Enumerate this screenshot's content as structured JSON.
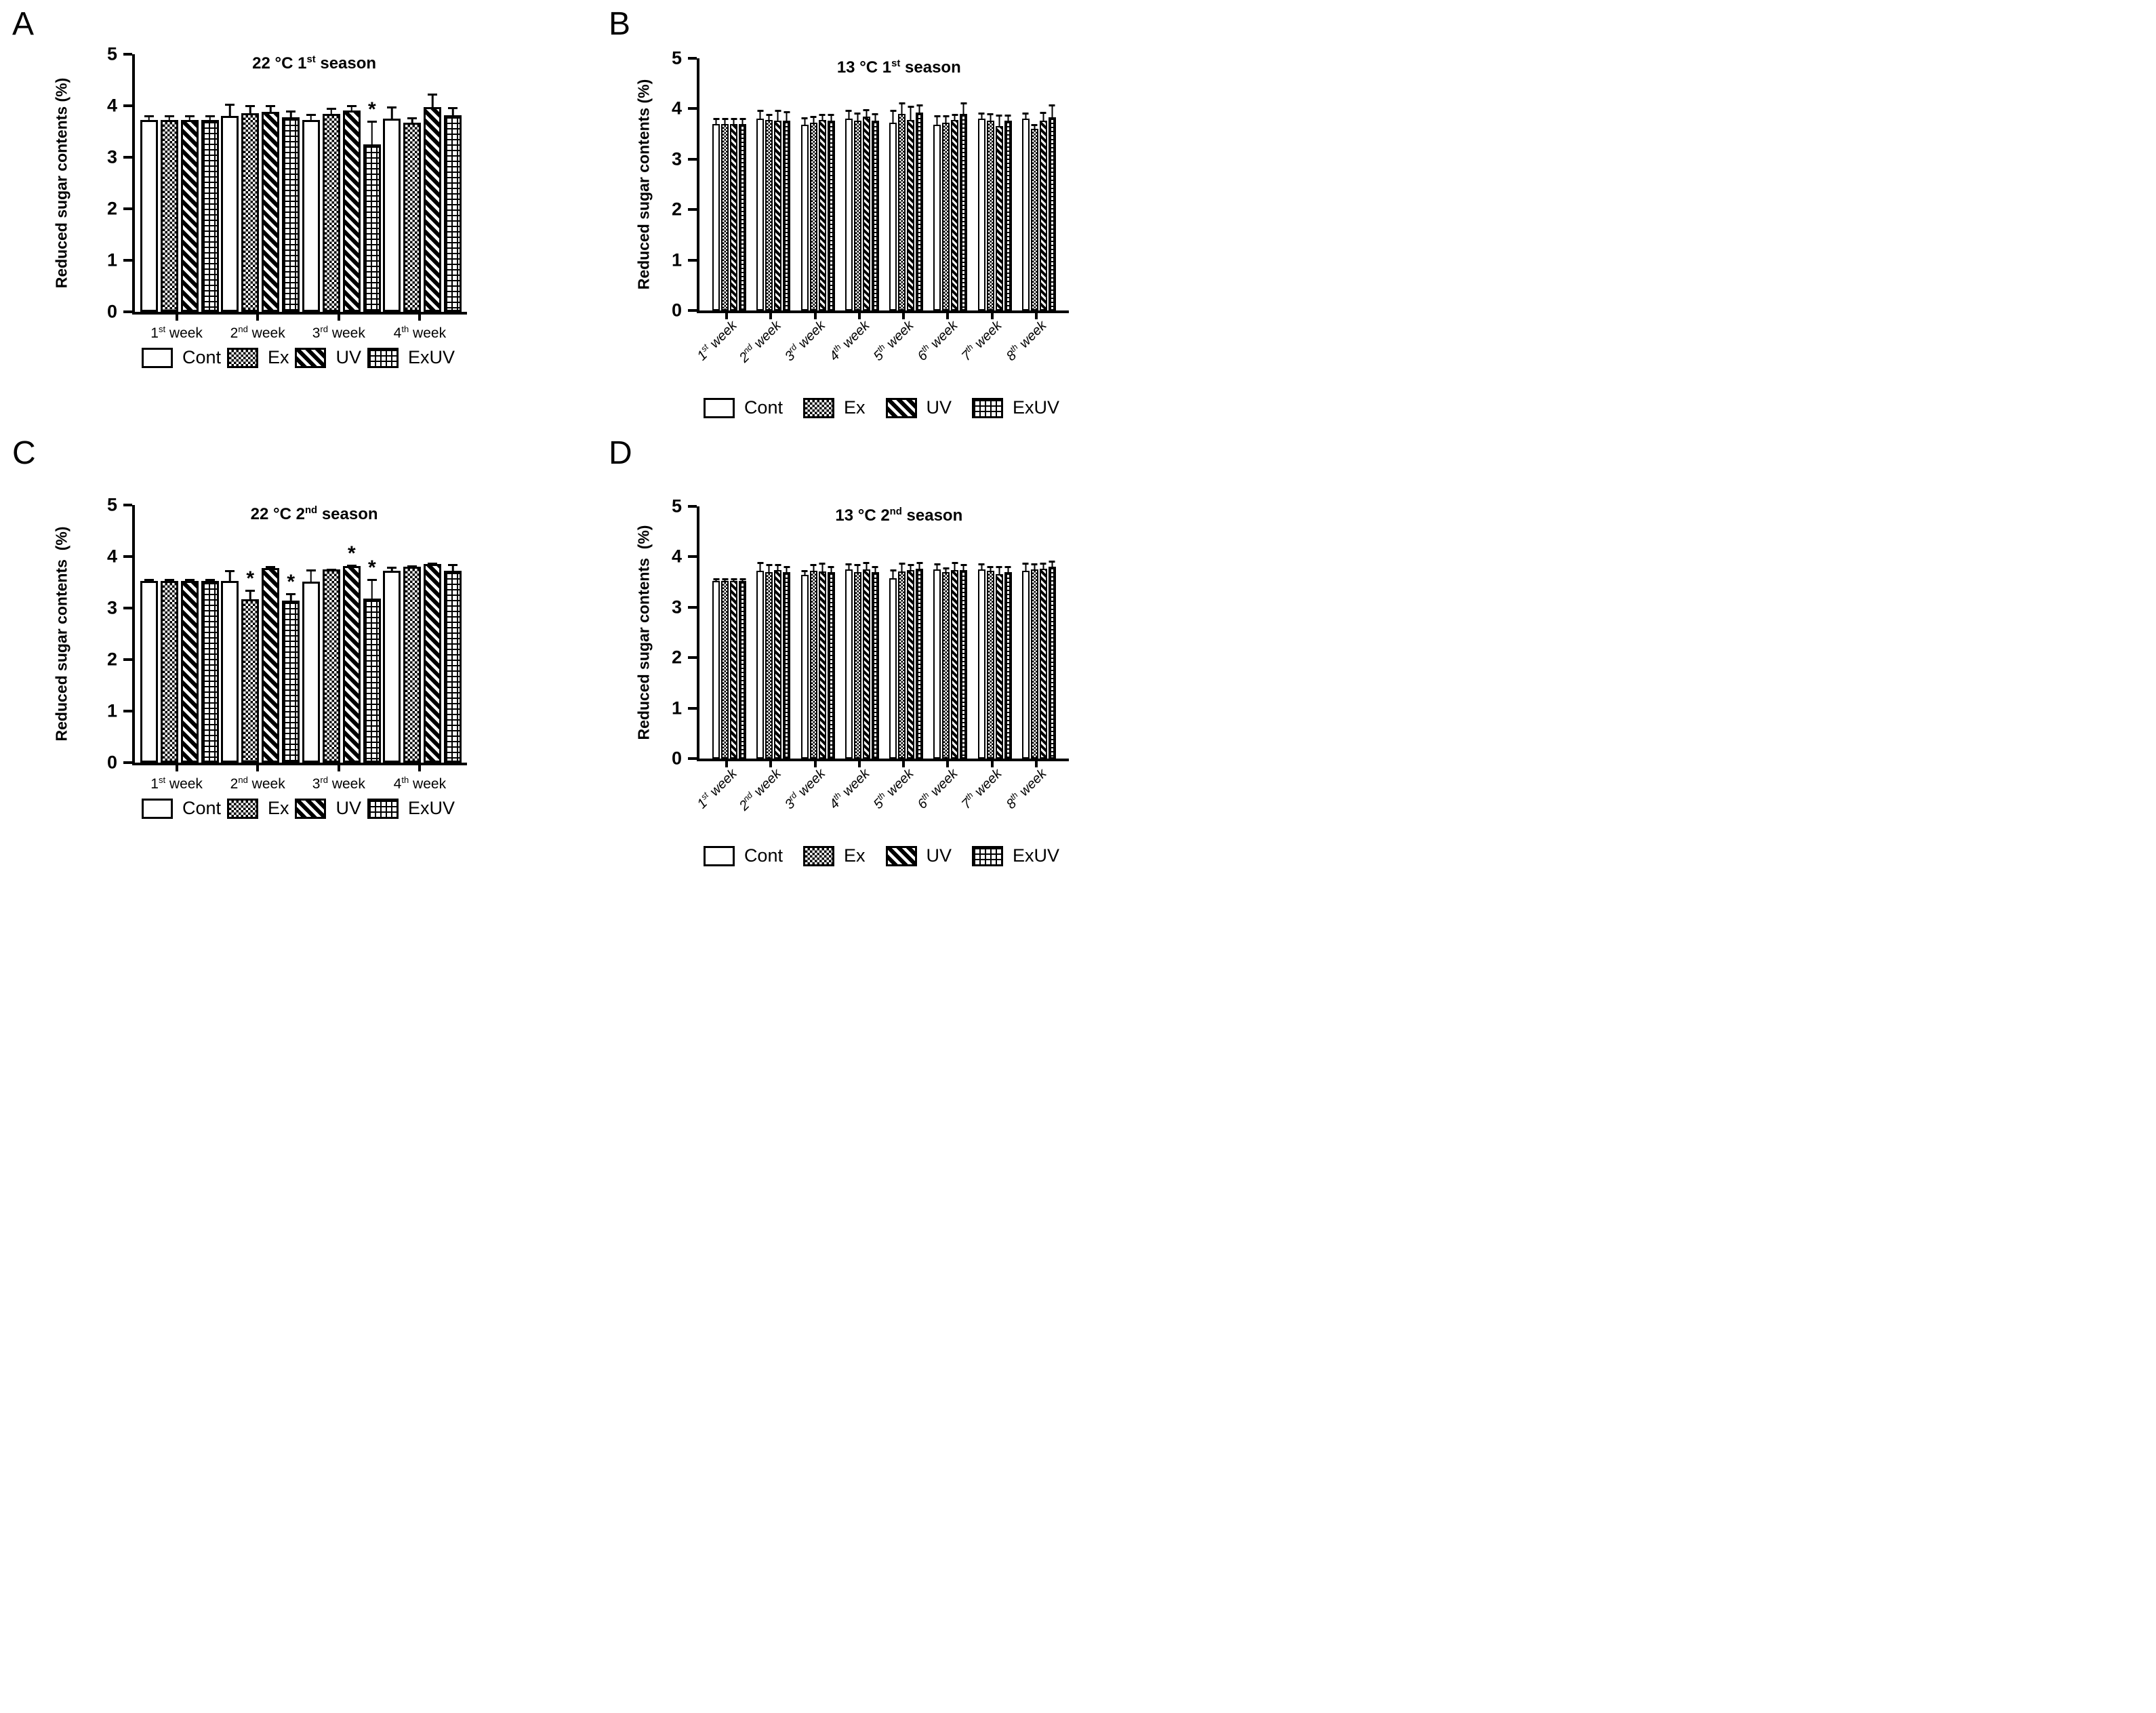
{
  "ui": {
    "sig_symbol": "*",
    "colors": {
      "foreground": "#000000",
      "background": "#ffffff"
    },
    "legend": [
      {
        "name": "Cont",
        "pattern": "cont",
        "swatch": "empty-white"
      },
      {
        "name": "Ex",
        "pattern": "ex",
        "swatch": "checkerboard"
      },
      {
        "name": "UV",
        "pattern": "uv",
        "swatch": "diagonal-stripes"
      },
      {
        "name": "ExUV",
        "pattern": "exuv",
        "swatch": "brick"
      }
    ]
  },
  "chart_data": [
    {
      "id": "A",
      "panel_letter": "A",
      "type": "bar",
      "title": "22 °C 1st season",
      "title_parts": {
        "prefix": "22 °C 1",
        "sup": "st",
        "suffix": " season"
      },
      "ylabel": "Reduced sugar contents (%)",
      "ylim": [
        0,
        5
      ],
      "yticks": [
        0,
        1,
        2,
        3,
        4,
        5
      ],
      "grid": false,
      "legend_position": "bottom",
      "categories": [
        "1st week",
        "2nd week",
        "3rd week",
        "4th week"
      ],
      "category_parts": [
        {
          "n": "1",
          "sup": "st",
          "rest": " week"
        },
        {
          "n": "2",
          "sup": "nd",
          "rest": " week"
        },
        {
          "n": "3",
          "sup": "rd",
          "rest": " week"
        },
        {
          "n": "4",
          "sup": "th",
          "rest": " week"
        }
      ],
      "rotated_xlabels": false,
      "series": [
        {
          "name": "Cont",
          "pattern": "cont",
          "values": [
            3.72,
            3.8,
            3.73,
            3.75
          ],
          "errors": [
            0.14,
            0.28,
            0.15,
            0.27
          ],
          "sig": [
            false,
            false,
            false,
            false
          ]
        },
        {
          "name": "Ex",
          "pattern": "ex",
          "values": [
            3.72,
            3.85,
            3.84,
            3.67
          ],
          "errors": [
            0.14,
            0.2,
            0.16,
            0.14
          ],
          "sig": [
            false,
            false,
            false,
            false
          ]
        },
        {
          "name": "UV",
          "pattern": "uv",
          "values": [
            3.72,
            3.88,
            3.91,
            3.97
          ],
          "errors": [
            0.14,
            0.17,
            0.14,
            0.3
          ],
          "sig": [
            false,
            false,
            false,
            false
          ]
        },
        {
          "name": "ExUV",
          "pattern": "exuv",
          "values": [
            3.72,
            3.78,
            3.25,
            3.81
          ],
          "errors": [
            0.14,
            0.17,
            0.5,
            0.2
          ],
          "sig": [
            false,
            false,
            true,
            false
          ]
        }
      ]
    },
    {
      "id": "B",
      "panel_letter": "B",
      "type": "bar",
      "title": "13 °C 1st season",
      "title_parts": {
        "prefix": "13 °C 1",
        "sup": "st",
        "suffix": " season"
      },
      "ylabel": "Reduced sugar contents (%)",
      "ylim": [
        0,
        5
      ],
      "yticks": [
        0,
        1,
        2,
        3,
        4,
        5
      ],
      "grid": false,
      "legend_position": "bottom",
      "categories": [
        "1st week",
        "2nd week",
        "3rd week",
        "4th week",
        "5th week",
        "6th week",
        "7th week",
        "8th week"
      ],
      "category_parts": [
        {
          "n": "1",
          "sup": "st",
          "rest": " week"
        },
        {
          "n": "2",
          "sup": "nd",
          "rest": " week"
        },
        {
          "n": "3",
          "sup": "rd",
          "rest": " week"
        },
        {
          "n": "4",
          "sup": "th",
          "rest": " week"
        },
        {
          "n": "5",
          "sup": "th",
          "rest": " week"
        },
        {
          "n": "6",
          "sup": "th",
          "rest": " week"
        },
        {
          "n": "7",
          "sup": "th",
          "rest": " week"
        },
        {
          "n": "8",
          "sup": "th",
          "rest": " week"
        }
      ],
      "rotated_xlabels": true,
      "series": [
        {
          "name": "Cont",
          "pattern": "cont",
          "values": [
            3.7,
            3.8,
            3.68,
            3.8,
            3.72,
            3.68,
            3.8,
            3.8
          ],
          "errors": [
            0.15,
            0.2,
            0.18,
            0.2,
            0.28,
            0.22,
            0.15,
            0.15
          ],
          "sig": [
            false,
            false,
            false,
            false,
            false,
            false,
            false,
            false
          ]
        },
        {
          "name": "Ex",
          "pattern": "ex",
          "values": [
            3.7,
            3.78,
            3.73,
            3.77,
            3.9,
            3.72,
            3.76,
            3.6
          ],
          "errors": [
            0.15,
            0.15,
            0.15,
            0.18,
            0.25,
            0.18,
            0.18,
            0.12
          ],
          "sig": [
            false,
            false,
            false,
            false,
            false,
            false,
            false,
            false
          ]
        },
        {
          "name": "UV",
          "pattern": "uv",
          "values": [
            3.7,
            3.76,
            3.78,
            3.84,
            3.78,
            3.78,
            3.66,
            3.77
          ],
          "errors": [
            0.15,
            0.25,
            0.15,
            0.18,
            0.3,
            0.15,
            0.25,
            0.2
          ],
          "sig": [
            false,
            false,
            false,
            false,
            false,
            false,
            false,
            false
          ]
        },
        {
          "name": "ExUV",
          "pattern": "exuv",
          "values": [
            3.7,
            3.76,
            3.76,
            3.76,
            3.93,
            3.9,
            3.76,
            3.83
          ],
          "errors": [
            0.15,
            0.22,
            0.17,
            0.18,
            0.18,
            0.25,
            0.15,
            0.28
          ],
          "sig": [
            false,
            false,
            false,
            false,
            false,
            false,
            false,
            false
          ]
        }
      ]
    },
    {
      "id": "C",
      "panel_letter": "C",
      "type": "bar",
      "title": "22 °C 2nd season",
      "title_parts": {
        "prefix": "22 °C 2",
        "sup": "nd",
        "suffix": " season"
      },
      "ylabel": "Reduced sugar contents  (%)",
      "ylim": [
        0,
        5
      ],
      "yticks": [
        0,
        1,
        2,
        3,
        4,
        5
      ],
      "grid": false,
      "legend_position": "bottom",
      "categories": [
        "1st week",
        "2nd week",
        "3rd week",
        "4th week"
      ],
      "category_parts": [
        {
          "n": "1",
          "sup": "st",
          "rest": " week"
        },
        {
          "n": "2",
          "sup": "nd",
          "rest": " week"
        },
        {
          "n": "3",
          "sup": "rd",
          "rest": " week"
        },
        {
          "n": "4",
          "sup": "th",
          "rest": " week"
        }
      ],
      "rotated_xlabels": false,
      "series": [
        {
          "name": "Cont",
          "pattern": "cont",
          "values": [
            3.53,
            3.53,
            3.51,
            3.72
          ],
          "errors": [
            0.08,
            0.25,
            0.28,
            0.12
          ],
          "sig": [
            false,
            false,
            false,
            false
          ]
        },
        {
          "name": "Ex",
          "pattern": "ex",
          "values": [
            3.53,
            3.17,
            3.75,
            3.8
          ],
          "errors": [
            0.08,
            0.22,
            0.05,
            0.07
          ],
          "sig": [
            false,
            true,
            false,
            false
          ]
        },
        {
          "name": "UV",
          "pattern": "uv",
          "values": [
            3.53,
            3.77,
            3.82,
            3.85
          ],
          "errors": [
            0.08,
            0.08,
            0.06,
            0.07
          ],
          "sig": [
            false,
            false,
            true,
            false
          ]
        },
        {
          "name": "ExUV",
          "pattern": "exuv",
          "values": [
            3.53,
            3.15,
            3.18,
            3.72
          ],
          "errors": [
            0.08,
            0.18,
            0.42,
            0.18
          ],
          "sig": [
            false,
            true,
            true,
            false
          ]
        }
      ]
    },
    {
      "id": "D",
      "panel_letter": "D",
      "type": "bar",
      "title": "13 °C 2nd season",
      "title_parts": {
        "prefix": "13 °C 2",
        "sup": "nd",
        "suffix": " season"
      },
      "ylabel": "Reduced sugar contents  (%)",
      "ylim": [
        0,
        5
      ],
      "yticks": [
        0,
        1,
        2,
        3,
        4,
        5
      ],
      "grid": false,
      "legend_position": "bottom",
      "categories": [
        "1st week",
        "2nd week",
        "3rd week",
        "4th week",
        "5th week",
        "6th week",
        "7th week",
        "8th week"
      ],
      "category_parts": [
        {
          "n": "1",
          "sup": "st",
          "rest": " week"
        },
        {
          "n": "2",
          "sup": "nd",
          "rest": " week"
        },
        {
          "n": "3",
          "sup": "rd",
          "rest": " week"
        },
        {
          "n": "4",
          "sup": "th",
          "rest": " week"
        },
        {
          "n": "5",
          "sup": "th",
          "rest": " week"
        },
        {
          "n": "6",
          "sup": "th",
          "rest": " week"
        },
        {
          "n": "7",
          "sup": "th",
          "rest": " week"
        },
        {
          "n": "8",
          "sup": "th",
          "rest": " week"
        }
      ],
      "rotated_xlabels": true,
      "series": [
        {
          "name": "Cont",
          "pattern": "cont",
          "values": [
            3.52,
            3.72,
            3.64,
            3.75,
            3.58,
            3.75,
            3.75,
            3.73
          ],
          "errors": [
            0.08,
            0.2,
            0.12,
            0.15,
            0.2,
            0.15,
            0.15,
            0.18
          ],
          "sig": [
            false,
            false,
            false,
            false,
            false,
            false,
            false,
            false
          ]
        },
        {
          "name": "Ex",
          "pattern": "ex",
          "values": [
            3.52,
            3.7,
            3.73,
            3.69,
            3.71,
            3.7,
            3.72,
            3.75
          ],
          "errors": [
            0.08,
            0.18,
            0.15,
            0.2,
            0.2,
            0.12,
            0.12,
            0.15
          ],
          "sig": [
            false,
            false,
            false,
            false,
            false,
            false,
            false,
            false
          ]
        },
        {
          "name": "UV",
          "pattern": "uv",
          "values": [
            3.52,
            3.74,
            3.71,
            3.75,
            3.74,
            3.74,
            3.66,
            3.76
          ],
          "errors": [
            0.08,
            0.15,
            0.2,
            0.18,
            0.15,
            0.18,
            0.18,
            0.15
          ],
          "sig": [
            false,
            false,
            false,
            false,
            false,
            false,
            false,
            false
          ]
        },
        {
          "name": "ExUV",
          "pattern": "exuv",
          "values": [
            3.52,
            3.7,
            3.69,
            3.69,
            3.77,
            3.74,
            3.7,
            3.8
          ],
          "errors": [
            0.08,
            0.15,
            0.15,
            0.15,
            0.15,
            0.15,
            0.15,
            0.15
          ],
          "sig": [
            false,
            false,
            false,
            false,
            false,
            false,
            false,
            false
          ]
        }
      ]
    }
  ]
}
